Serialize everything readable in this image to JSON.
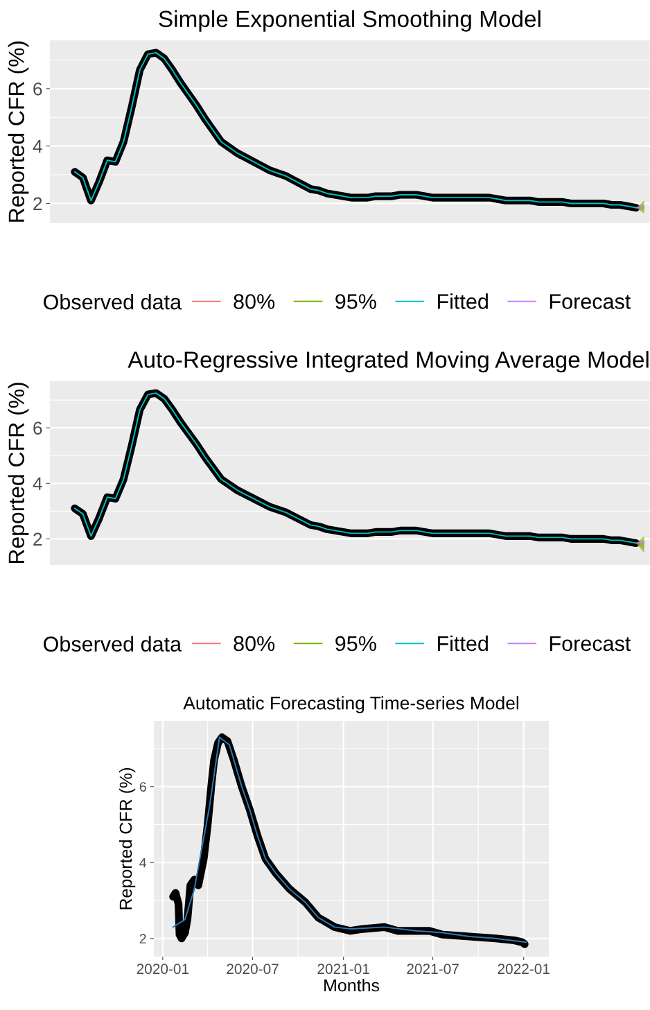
{
  "chart_data": [
    {
      "type": "line",
      "title": "Simple Exponential Smoothing Model",
      "ylabel": "Reported CFR (%)",
      "legend_title": "Observed data",
      "legend": "bottom",
      "grid": "y",
      "tick_labels": "y",
      "categories": [
        null,
        null,
        null,
        null,
        null,
        null,
        null,
        null,
        null,
        null,
        null,
        null,
        null,
        null,
        null,
        null,
        null,
        null,
        null,
        null,
        null,
        null,
        null,
        null,
        null,
        null,
        null,
        null,
        null,
        null,
        null,
        null,
        null,
        null,
        null,
        null,
        null,
        null,
        null,
        null,
        null,
        null,
        null,
        null,
        null,
        null,
        null,
        null,
        null,
        null,
        null,
        null,
        null,
        null,
        null,
        null,
        null,
        null,
        null,
        null,
        null,
        null,
        null,
        null,
        null,
        null,
        null,
        null,
        null,
        null,
        null
      ],
      "ylim": [
        1.31,
        7.68
      ],
      "yticks": [
        2,
        {
          "value": 3,
          "label": null
        },
        4,
        {
          "value": 5,
          "label": null
        },
        6,
        {
          "value": 7,
          "label": null
        }
      ],
      "series": [
        {
          "color": "#000000",
          "values": [
            3.1,
            2.9,
            2.1,
            2.75,
            3.5,
            3.45,
            4.15,
            5.35,
            6.65,
            7.2,
            7.25,
            7.05,
            6.65,
            6.2,
            5.8,
            5.4,
            4.95,
            4.55,
            4.15,
            3.95,
            3.75,
            3.6,
            3.45,
            3.3,
            3.15,
            3.05,
            2.95,
            2.8,
            2.65,
            2.5,
            2.45,
            2.35,
            2.3,
            2.25,
            2.2,
            2.2,
            2.2,
            2.25,
            2.25,
            2.25,
            2.3,
            2.3,
            2.3,
            2.25,
            2.2,
            2.2,
            2.2,
            2.2,
            2.2,
            2.2,
            2.2,
            2.2,
            2.15,
            2.1,
            2.1,
            2.1,
            2.1,
            2.05,
            2.05,
            2.05,
            2.05,
            2.0,
            2.0,
            2.0,
            2.0,
            2.0,
            1.95,
            1.95,
            1.9,
            1.85,
            null
          ]
        },
        {
          "name": "80%",
          "color": "#f8766d",
          "values": [
            null,
            null,
            null,
            null,
            null,
            null,
            null,
            null,
            null,
            null,
            null,
            null,
            null,
            null,
            null,
            null,
            null,
            null,
            null,
            null,
            null,
            null,
            null,
            null,
            null,
            null,
            null,
            null,
            null,
            null,
            null,
            null,
            null,
            null,
            null,
            null,
            null,
            null,
            null,
            null,
            null,
            null,
            null,
            null,
            null,
            null,
            null,
            null,
            null,
            null,
            null,
            null,
            null,
            null,
            null,
            null,
            null,
            null,
            null,
            null,
            null,
            null,
            null,
            null,
            null,
            null,
            null,
            null,
            null,
            null,
            null
          ],
          "lower": [
            null,
            null,
            null,
            null,
            null,
            null,
            null,
            null,
            null,
            null,
            null,
            null,
            null,
            null,
            null,
            null,
            null,
            null,
            null,
            null,
            null,
            null,
            null,
            null,
            null,
            null,
            null,
            null,
            null,
            null,
            null,
            null,
            null,
            null,
            null,
            null,
            null,
            null,
            null,
            null,
            null,
            null,
            null,
            null,
            null,
            null,
            null,
            null,
            null,
            null,
            null,
            null,
            null,
            null,
            null,
            null,
            null,
            null,
            null,
            null,
            null,
            null,
            null,
            null,
            null,
            null,
            null,
            null,
            null,
            1.85,
            1.75
          ],
          "upper": [
            null,
            null,
            null,
            null,
            null,
            null,
            null,
            null,
            null,
            null,
            null,
            null,
            null,
            null,
            null,
            null,
            null,
            null,
            null,
            null,
            null,
            null,
            null,
            null,
            null,
            null,
            null,
            null,
            null,
            null,
            null,
            null,
            null,
            null,
            null,
            null,
            null,
            null,
            null,
            null,
            null,
            null,
            null,
            null,
            null,
            null,
            null,
            null,
            null,
            null,
            null,
            null,
            null,
            null,
            null,
            null,
            null,
            null,
            null,
            null,
            null,
            null,
            null,
            null,
            null,
            null,
            null,
            null,
            null,
            1.85,
            1.95
          ]
        },
        {
          "name": "95%",
          "color": "#7cae00",
          "values": [
            null,
            null,
            null,
            null,
            null,
            null,
            null,
            null,
            null,
            null,
            null,
            null,
            null,
            null,
            null,
            null,
            null,
            null,
            null,
            null,
            null,
            null,
            null,
            null,
            null,
            null,
            null,
            null,
            null,
            null,
            null,
            null,
            null,
            null,
            null,
            null,
            null,
            null,
            null,
            null,
            null,
            null,
            null,
            null,
            null,
            null,
            null,
            null,
            null,
            null,
            null,
            null,
            null,
            null,
            null,
            null,
            null,
            null,
            null,
            null,
            null,
            null,
            null,
            null,
            null,
            null,
            null,
            null,
            null,
            null,
            null
          ],
          "lower": [
            null,
            null,
            null,
            null,
            null,
            null,
            null,
            null,
            null,
            null,
            null,
            null,
            null,
            null,
            null,
            null,
            null,
            null,
            null,
            null,
            null,
            null,
            null,
            null,
            null,
            null,
            null,
            null,
            null,
            null,
            null,
            null,
            null,
            null,
            null,
            null,
            null,
            null,
            null,
            null,
            null,
            null,
            null,
            null,
            null,
            null,
            null,
            null,
            null,
            null,
            null,
            null,
            null,
            null,
            null,
            null,
            null,
            null,
            null,
            null,
            null,
            null,
            null,
            null,
            null,
            null,
            null,
            null,
            null,
            1.85,
            1.65
          ],
          "upper": [
            null,
            null,
            null,
            null,
            null,
            null,
            null,
            null,
            null,
            null,
            null,
            null,
            null,
            null,
            null,
            null,
            null,
            null,
            null,
            null,
            null,
            null,
            null,
            null,
            null,
            null,
            null,
            null,
            null,
            null,
            null,
            null,
            null,
            null,
            null,
            null,
            null,
            null,
            null,
            null,
            null,
            null,
            null,
            null,
            null,
            null,
            null,
            null,
            null,
            null,
            null,
            null,
            null,
            null,
            null,
            null,
            null,
            null,
            null,
            null,
            null,
            null,
            null,
            null,
            null,
            null,
            null,
            null,
            null,
            1.85,
            2.1
          ]
        },
        {
          "name": "Fitted",
          "color": "#00bfc4",
          "values": [
            3.1,
            2.9,
            2.1,
            2.75,
            3.5,
            3.45,
            4.15,
            5.35,
            6.65,
            7.2,
            7.25,
            7.05,
            6.65,
            6.2,
            5.8,
            5.4,
            4.95,
            4.55,
            4.15,
            3.95,
            3.75,
            3.6,
            3.45,
            3.3,
            3.15,
            3.05,
            2.95,
            2.8,
            2.65,
            2.5,
            2.45,
            2.35,
            2.3,
            2.25,
            2.2,
            2.2,
            2.2,
            2.25,
            2.25,
            2.25,
            2.3,
            2.3,
            2.3,
            2.25,
            2.2,
            2.2,
            2.2,
            2.2,
            2.2,
            2.2,
            2.2,
            2.2,
            2.15,
            2.1,
            2.1,
            2.1,
            2.1,
            2.05,
            2.05,
            2.05,
            2.05,
            2.0,
            2.0,
            2.0,
            2.0,
            2.0,
            1.95,
            1.95,
            1.9,
            1.85,
            null
          ]
        },
        {
          "name": "Forecast",
          "color": "#c77cff",
          "values": [
            null,
            null,
            null,
            null,
            null,
            null,
            null,
            null,
            null,
            null,
            null,
            null,
            null,
            null,
            null,
            null,
            null,
            null,
            null,
            null,
            null,
            null,
            null,
            null,
            null,
            null,
            null,
            null,
            null,
            null,
            null,
            null,
            null,
            null,
            null,
            null,
            null,
            null,
            null,
            null,
            null,
            null,
            null,
            null,
            null,
            null,
            null,
            null,
            null,
            null,
            null,
            null,
            null,
            null,
            null,
            null,
            null,
            null,
            null,
            null,
            null,
            null,
            null,
            null,
            null,
            null,
            null,
            null,
            null,
            1.85,
            1.85
          ]
        }
      ]
    },
    {
      "type": "line",
      "title": "Auto-Regressive Integrated Moving Average Model",
      "ylabel": "Reported CFR (%)",
      "legend_title": "Observed data",
      "legend": "bottom",
      "grid": "y",
      "tick_labels": "y",
      "categories": [
        null,
        null,
        null,
        null,
        null,
        null,
        null,
        null,
        null,
        null,
        null,
        null,
        null,
        null,
        null,
        null,
        null,
        null,
        null,
        null,
        null,
        null,
        null,
        null,
        null,
        null,
        null,
        null,
        null,
        null,
        null,
        null,
        null,
        null,
        null,
        null,
        null,
        null,
        null,
        null,
        null,
        null,
        null,
        null,
        null,
        null,
        null,
        null,
        null,
        null,
        null,
        null,
        null,
        null,
        null,
        null,
        null,
        null,
        null,
        null,
        null,
        null,
        null,
        null,
        null,
        null,
        null,
        null,
        null,
        null,
        null
      ],
      "ylim": [
        1.06,
        7.68
      ],
      "yticks": [
        2,
        {
          "value": 3,
          "label": null
        },
        4,
        {
          "value": 5,
          "label": null
        },
        6,
        {
          "value": 7,
          "label": null
        }
      ],
      "series": [
        {
          "color": "#000000",
          "values": [
            3.1,
            2.9,
            2.1,
            2.75,
            3.5,
            3.45,
            4.15,
            5.35,
            6.65,
            7.2,
            7.25,
            7.05,
            6.65,
            6.2,
            5.8,
            5.4,
            4.95,
            4.55,
            4.15,
            3.95,
            3.75,
            3.6,
            3.45,
            3.3,
            3.15,
            3.05,
            2.95,
            2.8,
            2.65,
            2.5,
            2.45,
            2.35,
            2.3,
            2.25,
            2.2,
            2.2,
            2.2,
            2.25,
            2.25,
            2.25,
            2.3,
            2.3,
            2.3,
            2.25,
            2.2,
            2.2,
            2.2,
            2.2,
            2.2,
            2.2,
            2.2,
            2.2,
            2.15,
            2.1,
            2.1,
            2.1,
            2.1,
            2.05,
            2.05,
            2.05,
            2.05,
            2.0,
            2.0,
            2.0,
            2.0,
            2.0,
            1.95,
            1.95,
            1.9,
            1.85,
            null
          ]
        },
        {
          "name": "80%",
          "color": "#f8766d",
          "values": [
            null,
            null,
            null,
            null,
            null,
            null,
            null,
            null,
            null,
            null,
            null,
            null,
            null,
            null,
            null,
            null,
            null,
            null,
            null,
            null,
            null,
            null,
            null,
            null,
            null,
            null,
            null,
            null,
            null,
            null,
            null,
            null,
            null,
            null,
            null,
            null,
            null,
            null,
            null,
            null,
            null,
            null,
            null,
            null,
            null,
            null,
            null,
            null,
            null,
            null,
            null,
            null,
            null,
            null,
            null,
            null,
            null,
            null,
            null,
            null,
            null,
            null,
            null,
            null,
            null,
            null,
            null,
            null,
            null,
            null,
            null
          ],
          "lower": [
            null,
            null,
            null,
            null,
            null,
            null,
            null,
            null,
            null,
            null,
            null,
            null,
            null,
            null,
            null,
            null,
            null,
            null,
            null,
            null,
            null,
            null,
            null,
            null,
            null,
            null,
            null,
            null,
            null,
            null,
            null,
            null,
            null,
            null,
            null,
            null,
            null,
            null,
            null,
            null,
            null,
            null,
            null,
            null,
            null,
            null,
            null,
            null,
            null,
            null,
            null,
            null,
            null,
            null,
            null,
            null,
            null,
            null,
            null,
            null,
            null,
            null,
            null,
            null,
            null,
            null,
            null,
            null,
            null,
            1.85,
            1.65
          ],
          "upper": [
            null,
            null,
            null,
            null,
            null,
            null,
            null,
            null,
            null,
            null,
            null,
            null,
            null,
            null,
            null,
            null,
            null,
            null,
            null,
            null,
            null,
            null,
            null,
            null,
            null,
            null,
            null,
            null,
            null,
            null,
            null,
            null,
            null,
            null,
            null,
            null,
            null,
            null,
            null,
            null,
            null,
            null,
            null,
            null,
            null,
            null,
            null,
            null,
            null,
            null,
            null,
            null,
            null,
            null,
            null,
            null,
            null,
            null,
            null,
            null,
            null,
            null,
            null,
            null,
            null,
            null,
            null,
            null,
            null,
            1.85,
            1.95
          ]
        },
        {
          "name": "95%",
          "color": "#7cae00",
          "values": [
            null,
            null,
            null,
            null,
            null,
            null,
            null,
            null,
            null,
            null,
            null,
            null,
            null,
            null,
            null,
            null,
            null,
            null,
            null,
            null,
            null,
            null,
            null,
            null,
            null,
            null,
            null,
            null,
            null,
            null,
            null,
            null,
            null,
            null,
            null,
            null,
            null,
            null,
            null,
            null,
            null,
            null,
            null,
            null,
            null,
            null,
            null,
            null,
            null,
            null,
            null,
            null,
            null,
            null,
            null,
            null,
            null,
            null,
            null,
            null,
            null,
            null,
            null,
            null,
            null,
            null,
            null,
            null,
            null,
            null,
            null
          ],
          "lower": [
            null,
            null,
            null,
            null,
            null,
            null,
            null,
            null,
            null,
            null,
            null,
            null,
            null,
            null,
            null,
            null,
            null,
            null,
            null,
            null,
            null,
            null,
            null,
            null,
            null,
            null,
            null,
            null,
            null,
            null,
            null,
            null,
            null,
            null,
            null,
            null,
            null,
            null,
            null,
            null,
            null,
            null,
            null,
            null,
            null,
            null,
            null,
            null,
            null,
            null,
            null,
            null,
            null,
            null,
            null,
            null,
            null,
            null,
            null,
            null,
            null,
            null,
            null,
            null,
            null,
            null,
            null,
            null,
            null,
            1.85,
            1.5
          ],
          "upper": [
            null,
            null,
            null,
            null,
            null,
            null,
            null,
            null,
            null,
            null,
            null,
            null,
            null,
            null,
            null,
            null,
            null,
            null,
            null,
            null,
            null,
            null,
            null,
            null,
            null,
            null,
            null,
            null,
            null,
            null,
            null,
            null,
            null,
            null,
            null,
            null,
            null,
            null,
            null,
            null,
            null,
            null,
            null,
            null,
            null,
            null,
            null,
            null,
            null,
            null,
            null,
            null,
            null,
            null,
            null,
            null,
            null,
            null,
            null,
            null,
            null,
            null,
            null,
            null,
            null,
            null,
            null,
            null,
            null,
            1.85,
            2.1
          ]
        },
        {
          "name": "Fitted",
          "color": "#00bfc4",
          "values": [
            3.1,
            2.9,
            2.1,
            2.75,
            3.5,
            3.45,
            4.15,
            5.35,
            6.65,
            7.2,
            7.25,
            7.05,
            6.65,
            6.2,
            5.8,
            5.4,
            4.95,
            4.55,
            4.15,
            3.95,
            3.75,
            3.6,
            3.45,
            3.3,
            3.15,
            3.05,
            2.95,
            2.8,
            2.65,
            2.5,
            2.45,
            2.35,
            2.3,
            2.25,
            2.2,
            2.2,
            2.2,
            2.25,
            2.25,
            2.25,
            2.3,
            2.3,
            2.3,
            2.25,
            2.2,
            2.2,
            2.2,
            2.2,
            2.2,
            2.2,
            2.2,
            2.2,
            2.15,
            2.1,
            2.1,
            2.1,
            2.1,
            2.05,
            2.05,
            2.05,
            2.05,
            2.0,
            2.0,
            2.0,
            2.0,
            2.0,
            1.95,
            1.95,
            1.9,
            1.85,
            null
          ]
        },
        {
          "name": "Forecast",
          "color": "#c77cff",
          "values": [
            null,
            null,
            null,
            null,
            null,
            null,
            null,
            null,
            null,
            null,
            null,
            null,
            null,
            null,
            null,
            null,
            null,
            null,
            null,
            null,
            null,
            null,
            null,
            null,
            null,
            null,
            null,
            null,
            null,
            null,
            null,
            null,
            null,
            null,
            null,
            null,
            null,
            null,
            null,
            null,
            null,
            null,
            null,
            null,
            null,
            null,
            null,
            null,
            null,
            null,
            null,
            null,
            null,
            null,
            null,
            null,
            null,
            null,
            null,
            null,
            null,
            null,
            null,
            null,
            null,
            null,
            null,
            null,
            null,
            1.85,
            1.85
          ]
        }
      ]
    },
    {
      "type": "line",
      "title": "Automatic Forecasting Time-series Model",
      "xlabel": "Months",
      "ylabel": "Reported CFR (%)",
      "grid": true,
      "xlim": [
        "2019-12-14",
        "2022-02-21"
      ],
      "xticks": [
        {
          "value": "2020-01-01",
          "label": "2020-01"
        },
        {
          "value": "2020-04-01",
          "label": null
        },
        {
          "value": "2020-07-01",
          "label": "2020-07"
        },
        {
          "value": "2020-10-01",
          "label": null
        },
        {
          "value": "2021-01-01",
          "label": "2021-01"
        },
        {
          "value": "2021-04-01",
          "label": null
        },
        {
          "value": "2021-07-01",
          "label": "2021-07"
        },
        {
          "value": "2021-10-01",
          "label": null
        },
        {
          "value": "2022-01-01",
          "label": "2022-01"
        }
      ],
      "ylim": [
        1.52,
        7.73
      ],
      "yticks": [
        2,
        {
          "value": 3,
          "label": null
        },
        4,
        {
          "value": 5,
          "label": null
        },
        6,
        {
          "value": 7,
          "label": null
        }
      ],
      "series": [
        {
          "color": "#000000",
          "x": [
            "2020-01-22",
            "2020-01-27",
            "2020-02-02",
            "2020-02-04",
            "2020-02-08",
            "2020-02-15",
            "2020-02-20",
            "2020-02-26",
            "2020-03-05",
            "2020-03-13",
            "2020-03-24",
            "2020-04-01",
            "2020-04-09",
            "2020-04-14",
            "2020-04-22",
            "2020-04-30",
            "2020-05-11",
            "2020-05-24",
            "2020-06-09",
            "2020-06-25",
            "2020-07-11",
            "2020-07-27",
            "2020-08-18",
            "2020-09-14",
            "2020-10-16",
            "2020-11-11",
            "2020-12-14",
            "2021-01-15",
            "2021-02-10",
            "2021-03-25",
            "2021-04-21",
            "2021-05-28",
            "2021-06-24",
            "2021-07-21",
            "2021-09-13",
            "2021-11-05",
            "2021-12-13",
            "2021-12-29",
            "2022-01-03"
          ],
          "values": [
            3.1,
            3.2,
            2.9,
            2.1,
            2.0,
            2.15,
            2.5,
            3.4,
            3.55,
            3.4,
            4.1,
            5.0,
            6.1,
            6.7,
            7.15,
            7.3,
            7.2,
            6.7,
            6.0,
            5.4,
            4.7,
            4.1,
            3.7,
            3.3,
            2.95,
            2.55,
            2.3,
            2.2,
            2.25,
            2.3,
            2.2,
            2.2,
            2.2,
            2.1,
            2.05,
            2.0,
            1.95,
            1.9,
            1.85
          ]
        },
        {
          "color": "#2b7bba",
          "x": [
            "2020-01-22",
            "2020-02-15",
            "2020-03-05",
            "2020-04-05",
            "2020-04-25",
            "2020-05-15",
            "2020-06-09",
            "2020-06-25",
            "2020-07-11",
            "2020-07-27",
            "2020-08-18",
            "2020-09-14",
            "2020-10-16",
            "2020-11-11",
            "2020-12-14",
            "2021-01-15",
            "2021-03-25",
            "2021-05-28",
            "2021-07-21",
            "2021-09-13",
            "2021-11-05",
            "2022-01-06"
          ],
          "values": [
            2.3,
            2.5,
            3.3,
            5.5,
            7.3,
            7.1,
            6.0,
            5.4,
            4.7,
            4.1,
            3.7,
            3.3,
            2.95,
            2.55,
            2.3,
            2.25,
            2.3,
            2.2,
            2.15,
            2.05,
            2.0,
            1.9
          ]
        }
      ]
    }
  ]
}
